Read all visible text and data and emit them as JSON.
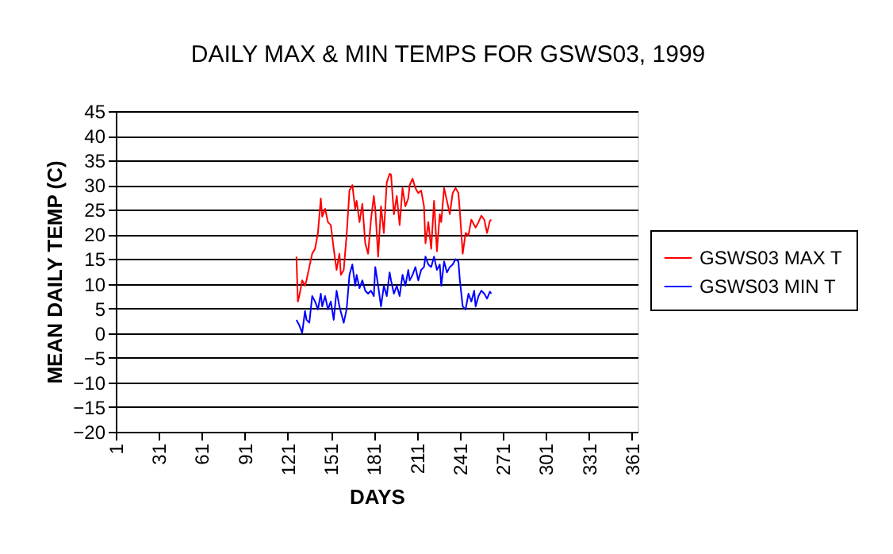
{
  "chart_data": {
    "type": "line",
    "title": "DAILY MAX & MIN TEMPS FOR GSWS03, 1999",
    "xlabel": "DAYS",
    "ylabel": "MEAN DAILY TEMP (C)",
    "xlim": [
      1,
      365
    ],
    "xticks": [
      1,
      31,
      61,
      91,
      121,
      151,
      181,
      211,
      241,
      271,
      301,
      331,
      361
    ],
    "ylim": [
      -20,
      45
    ],
    "yticks": [
      -20,
      -15,
      -10,
      -5,
      0,
      5,
      10,
      15,
      20,
      25,
      30,
      35,
      40,
      45
    ],
    "grid": "y",
    "legend": "right",
    "marker": "none",
    "line_style": "solid",
    "series": [
      {
        "name": "GSWS03 MAX T",
        "color": "#ff0000",
        "x": [
          127,
          128,
          129,
          131,
          133,
          134,
          136,
          138,
          140,
          142,
          144,
          145,
          147,
          149,
          151,
          153,
          155,
          157,
          158,
          160,
          162,
          164,
          166,
          168,
          169,
          171,
          173,
          175,
          177,
          179,
          181,
          182,
          184,
          186,
          188,
          190,
          192,
          193,
          195,
          197,
          199,
          201,
          203,
          205,
          206,
          208,
          210,
          212,
          214,
          216,
          217,
          219,
          221,
          223,
          225,
          227,
          228,
          230,
          232,
          234,
          236,
          238,
          240,
          241,
          243,
          245,
          247,
          249,
          251,
          252,
          254,
          256,
          258,
          260,
          262,
          263
        ],
        "values": [
          15.5,
          6.4,
          7.5,
          10.7,
          9.6,
          10.7,
          13.4,
          16.1,
          17.1,
          20.3,
          27.3,
          23.6,
          25.2,
          22.5,
          21.9,
          17.1,
          12.8,
          16.1,
          11.8,
          12.8,
          19.8,
          28.9,
          30.0,
          25.2,
          26.8,
          22.5,
          26.2,
          18.2,
          16.1,
          23.0,
          27.8,
          25.2,
          15.5,
          25.7,
          20.3,
          30.5,
          32.3,
          32.1,
          24.1,
          27.8,
          21.9,
          29.4,
          25.7,
          27.3,
          30.0,
          31.3,
          29.4,
          28.4,
          28.9,
          25.7,
          18.2,
          22.5,
          17.1,
          26.8,
          16.6,
          24.1,
          22.5,
          29.4,
          26.8,
          24.1,
          28.4,
          29.4,
          28.4,
          24.6,
          16.1,
          20.3,
          19.8,
          23.0,
          21.9,
          21.4,
          22.5,
          23.8,
          23.0,
          20.3,
          22.8,
          23.0
        ]
      },
      {
        "name": "GSWS03 MIN T",
        "color": "#0000ff",
        "x": [
          127,
          129,
          131,
          133,
          134,
          136,
          138,
          140,
          142,
          144,
          145,
          147,
          149,
          151,
          153,
          155,
          157,
          158,
          160,
          162,
          164,
          166,
          168,
          169,
          171,
          173,
          175,
          177,
          179,
          181,
          182,
          184,
          186,
          188,
          190,
          192,
          193,
          195,
          197,
          199,
          201,
          203,
          205,
          206,
          208,
          210,
          212,
          214,
          216,
          217,
          219,
          221,
          223,
          225,
          227,
          228,
          230,
          232,
          234,
          236,
          238,
          240,
          241,
          243,
          245,
          247,
          249,
          251,
          252,
          254,
          256,
          258,
          260,
          262,
          263
        ],
        "values": [
          2.7,
          1.6,
          0,
          4.5,
          2.7,
          2.1,
          7.5,
          6.4,
          4.8,
          8.0,
          5.4,
          7.5,
          4.8,
          6.4,
          2.7,
          8.6,
          5.4,
          4.3,
          2.1,
          4.8,
          11.8,
          13.9,
          9.6,
          11.8,
          9.1,
          10.7,
          8.6,
          8.0,
          8.6,
          7.5,
          13.4,
          9.6,
          5.4,
          9.6,
          7.5,
          12.3,
          10.7,
          8.0,
          9.6,
          7.5,
          11.8,
          9.6,
          12.8,
          10.7,
          11.8,
          13.4,
          10.7,
          12.8,
          13.4,
          15.5,
          13.9,
          13.4,
          15.5,
          12.8,
          13.9,
          9.6,
          14.5,
          12.3,
          13.4,
          13.9,
          15.0,
          14.5,
          10.7,
          5.4,
          4.8,
          8.0,
          6.4,
          8.6,
          5.4,
          7.5,
          8.6,
          8.0,
          7.0,
          8.4,
          8.0
        ]
      }
    ]
  }
}
